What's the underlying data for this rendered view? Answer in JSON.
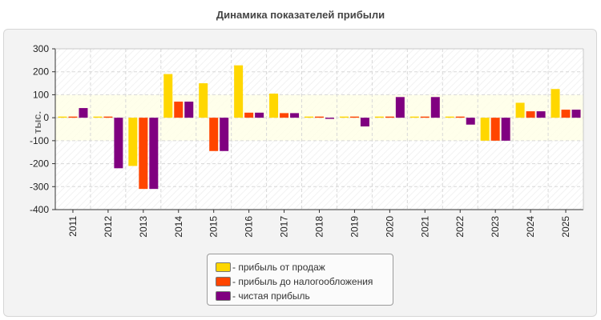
{
  "chart_data": {
    "type": "bar",
    "title": "Динамика показателей прибыли",
    "ylabel": "тыс.",
    "xlabel": "",
    "ylim": [
      -400,
      300
    ],
    "yticks": [
      300,
      200,
      100,
      0,
      -100,
      -200,
      -300,
      -400
    ],
    "grid": true,
    "legend_position": "bottom-center",
    "categories": [
      "2011",
      "2012",
      "2013",
      "2014",
      "2015",
      "2016",
      "2017",
      "2018",
      "2019",
      "2020",
      "2021",
      "2022",
      "2023",
      "2024",
      "2025"
    ],
    "series": [
      {
        "name": "прибыль от продаж",
        "color": "#ffd700",
        "values": [
          5,
          5,
          -210,
          190,
          150,
          228,
          105,
          5,
          5,
          5,
          5,
          5,
          -100,
          65,
          125
        ]
      },
      {
        "name": "прибыль до налогообложения",
        "color": "#ff4500",
        "values": [
          5,
          5,
          -310,
          70,
          -145,
          22,
          20,
          5,
          5,
          5,
          5,
          5,
          -100,
          28,
          35
        ]
      },
      {
        "name": "чистая прибыль",
        "color": "#800080",
        "values": [
          42,
          -220,
          -310,
          70,
          -145,
          22,
          20,
          -5,
          -38,
          90,
          90,
          -30,
          -100,
          28,
          35
        ]
      }
    ]
  }
}
